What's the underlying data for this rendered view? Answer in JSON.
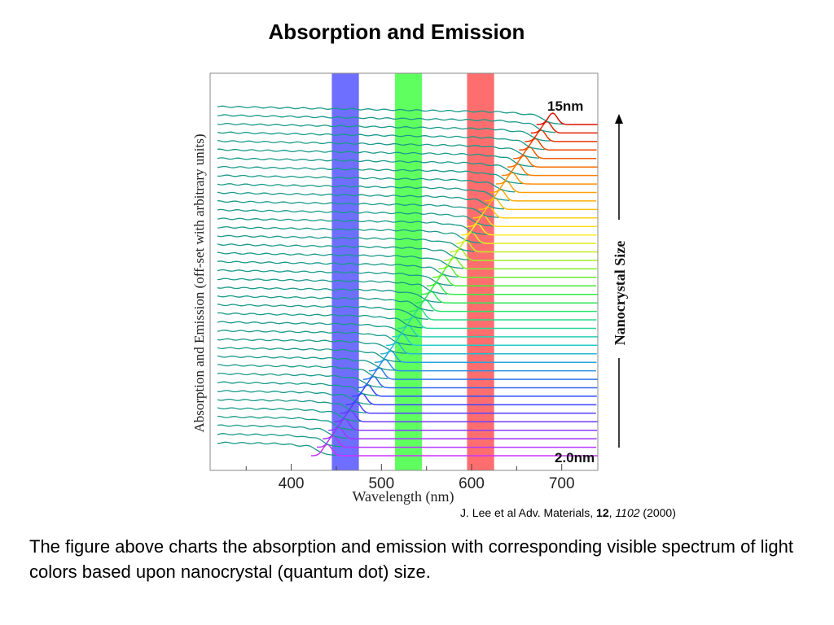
{
  "slide": {
    "title": "Absorption and Emission",
    "citation": {
      "prefix": "J. Lee et al Adv. Materials, ",
      "volume": "12",
      "separator": ", ",
      "page": "1102",
      "year": " (2000)"
    },
    "caption": "The figure above charts the absorption and emission with corresponding visible spectrum of light colors based upon nanocrystal (quantum dot) size."
  },
  "chart_data": {
    "type": "line",
    "title": "",
    "xlabel": "Wavelength (nm)",
    "ylabel": "Absorption and Emission (off-set with arbitrary units)",
    "xlim": [
      310,
      740
    ],
    "xticks": [
      400,
      500,
      600,
      700
    ],
    "x_tick_labels": [
      "400",
      "500",
      "600",
      "700"
    ],
    "grid": false,
    "legend": "none",
    "num_spectra": 40,
    "size_range_labels": {
      "smallest": "2.0nm",
      "largest": "15nm"
    },
    "size_axis_label": "Nanocrystal Size",
    "size_axis_direction": "increasing upward",
    "emission_peak_wavelength_range": [
      440,
      690
    ],
    "absorption_color": "#1a9a8a",
    "emission_gradient_colors": [
      "#cc33ff",
      "#3344ff",
      "#22cccc",
      "#33ee33",
      "#ffee22",
      "#ff8800",
      "#dd1100"
    ],
    "highlight_bands": [
      {
        "label": "blue band",
        "from": 445,
        "to": 475,
        "color": "#5555ff"
      },
      {
        "label": "green band",
        "from": 515,
        "to": 545,
        "color": "#44ff44"
      },
      {
        "label": "red band",
        "from": 595,
        "to": 625,
        "color": "#ff5555"
      }
    ]
  }
}
